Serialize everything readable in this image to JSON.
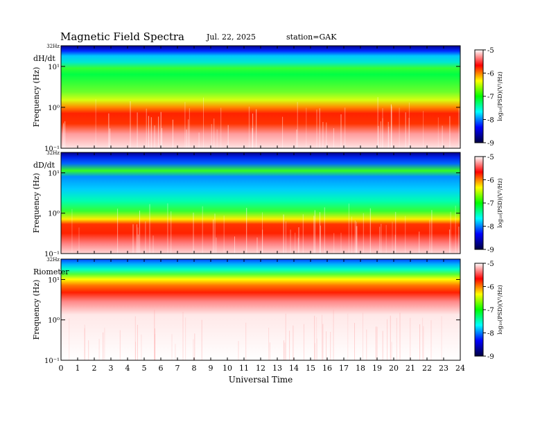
{
  "header": {
    "title": "Magnetic  Field  Spectra",
    "date": "Jul.  22, 2025",
    "station": "station=GAK"
  },
  "chart_data": {
    "type": "heatmap",
    "xlabel": "Universal Time",
    "x_ticks": [
      "0",
      "1",
      "2",
      "3",
      "4",
      "5",
      "6",
      "7",
      "8",
      "9",
      "10",
      "11",
      "12",
      "13",
      "14",
      "15",
      "16",
      "17",
      "18",
      "19",
      "20",
      "21",
      "22",
      "23",
      "24"
    ],
    "xlim": [
      0,
      24
    ],
    "yscale": "log",
    "colorbar": {
      "label": "log₁₀(PSD)(V²/Hz)",
      "ticks": [
        "-5",
        "-6",
        "-7",
        "-8",
        "-9"
      ],
      "range": [
        -9,
        -5
      ],
      "colors": [
        "#000040",
        "#0000ff",
        "#00ffff",
        "#00ff00",
        "#ffff00",
        "#ff0000",
        "#ffffff"
      ]
    },
    "panels": [
      {
        "name": "dH/dt",
        "ylabel": "Frequency  (Hz)",
        "top_label": "32Hz",
        "y_ticks": [
          "10¹",
          "10⁰",
          "10⁻¹"
        ],
        "ylim": [
          0.1,
          32
        ]
      },
      {
        "name": "dD/dt",
        "ylabel": "Frequency  (Hz)",
        "top_label": "32Hz",
        "y_ticks": [
          "10¹",
          "10⁰",
          "10⁻¹"
        ],
        "ylim": [
          0.1,
          32
        ]
      },
      {
        "name": "Riometer",
        "ylabel": "Frequency  (Hz)",
        "top_label": "32Hz",
        "y_ticks": [
          "10¹",
          "10⁰",
          "10⁻¹"
        ],
        "ylim": [
          0.1,
          32
        ]
      }
    ]
  }
}
